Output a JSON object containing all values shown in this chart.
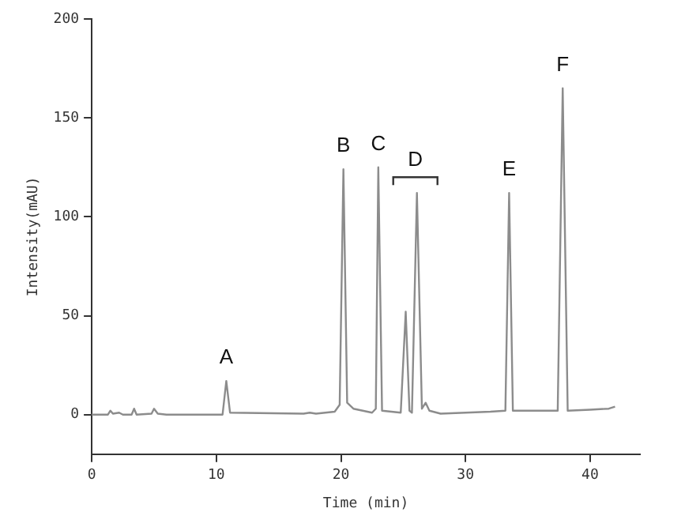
{
  "chart_data": {
    "type": "line",
    "xlabel": "Time (min)",
    "ylabel": "Intensity(mAU)",
    "xlim": [
      0,
      44
    ],
    "xticks": [
      0,
      10,
      20,
      30,
      40
    ],
    "ylim": [
      -20,
      200
    ],
    "yticks": [
      0,
      50,
      100,
      150,
      200
    ],
    "grid": false,
    "legend": false,
    "marker": "none",
    "line_style": "solid",
    "series": [
      {
        "color": "#8c8c8c",
        "x": [
          0,
          1.3,
          1.5,
          1.7,
          2.2,
          2.5,
          3.2,
          3.4,
          3.6,
          4.8,
          5.0,
          5.3,
          6,
          10.5,
          10.8,
          11.1,
          17,
          17.5,
          18,
          19.5,
          19.9,
          20.2,
          20.5,
          21,
          22.5,
          22.8,
          23.0,
          23.3,
          24.8,
          25.2,
          25.5,
          25.7,
          26.1,
          26.5,
          26.8,
          27.1,
          28,
          30,
          32,
          33.2,
          33.5,
          33.8,
          36,
          37.4,
          37.8,
          38.2,
          40,
          41.5,
          42
        ],
        "values": [
          0,
          0,
          2,
          0.5,
          1,
          0,
          0,
          3,
          0,
          0.5,
          3,
          0.5,
          0,
          0,
          17,
          1,
          0.5,
          1,
          0.5,
          1.5,
          5,
          124,
          6,
          3,
          1,
          3,
          125,
          2,
          1,
          52,
          2,
          1,
          112,
          3,
          6,
          2,
          0.5,
          1,
          1.5,
          2,
          112,
          2,
          2,
          2,
          165,
          2,
          2.5,
          3,
          4
        ]
      }
    ],
    "annotations": [
      {
        "text": "A",
        "x": 10.8,
        "y": 17
      },
      {
        "text": "B",
        "x": 20.2,
        "y": 124
      },
      {
        "text": "C",
        "x": 23.0,
        "y": 125
      },
      {
        "text": "D",
        "x": 26.1,
        "y": 112
      },
      {
        "text": "E",
        "x": 33.5,
        "y": 112
      },
      {
        "text": "F",
        "x": 37.8,
        "y": 165
      }
    ]
  }
}
